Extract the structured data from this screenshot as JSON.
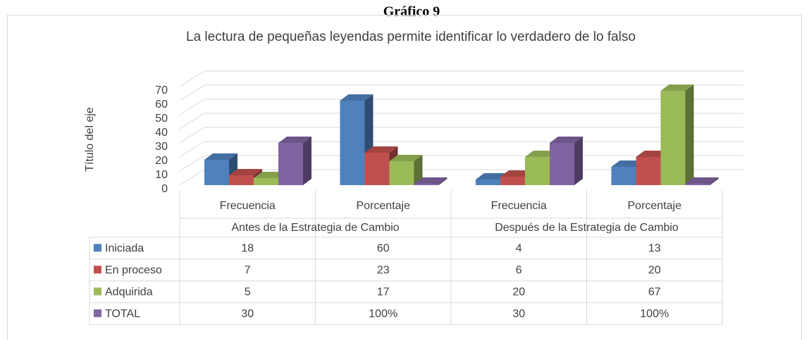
{
  "heading": "Gráfico 9",
  "chart_data": {
    "type": "bar3d",
    "title": "La lectura de pequeñas leyendas permite identificar lo verdadero de lo falso",
    "ylabel": "Título del eje",
    "categories": [
      "Frecuencia",
      "Porcentaje",
      "Frecuencia",
      "Porcentaje"
    ],
    "groups": [
      "Antes de la Estrategia de Cambio",
      "Después de la Estrategia de Cambio"
    ],
    "series": [
      {
        "name": "Iniciada",
        "color": "#4f81bd",
        "values": [
          18,
          60,
          4,
          13
        ]
      },
      {
        "name": "En proceso",
        "color": "#c0504d",
        "values": [
          7,
          23,
          6,
          20
        ]
      },
      {
        "name": "Adquirida",
        "color": "#9bbb59",
        "values": [
          5,
          17,
          20,
          67
        ]
      },
      {
        "name": "TOTAL",
        "color": "#8064a2",
        "values": [
          30,
          1,
          30,
          1
        ],
        "value_labels": [
          "30",
          "100%",
          "30",
          "100%"
        ]
      }
    ],
    "ylim": [
      0,
      70
    ],
    "yticks": [
      0,
      10,
      20,
      30,
      40,
      50,
      60,
      70
    ],
    "grid": true,
    "data_table": true
  }
}
